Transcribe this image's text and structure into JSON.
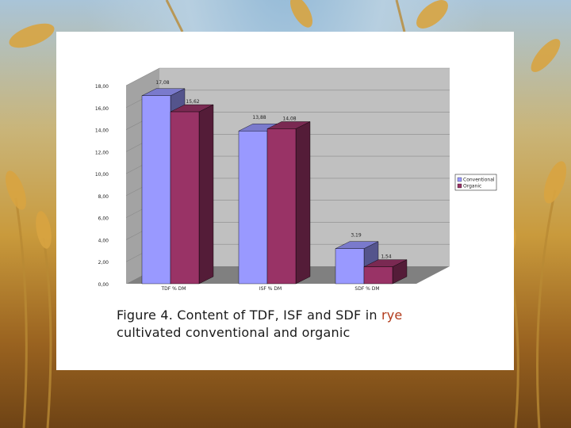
{
  "chart_data": {
    "type": "bar",
    "title": "",
    "xlabel": "",
    "ylabel": "",
    "ylim": [
      0,
      18
    ],
    "yticks": [
      "0,00",
      "2,00",
      "4,00",
      "6,00",
      "8,00",
      "10,00",
      "12,00",
      "14,00",
      "16,00",
      "18,00"
    ],
    "categories": [
      "TDF % DM",
      "ISF % DM",
      "SDF % DM"
    ],
    "series": [
      {
        "name": "Conventional",
        "values": [
          17.08,
          13.88,
          3.19
        ],
        "labels": [
          "17,08",
          "13,88",
          "3,19"
        ],
        "color": "#9999ff"
      },
      {
        "name": "Organic",
        "values": [
          15.62,
          14.08,
          1.54
        ],
        "labels": [
          "15,62",
          "14,08",
          "1,54"
        ],
        "color": "#993366"
      }
    ],
    "grid": true,
    "legend": "right",
    "style": "3d"
  },
  "caption": {
    "text_before": "Figure 4. Content of TDF, ISF and SDF in ",
    "highlight": "rye",
    "text_after": " cultivated conventional and organic"
  },
  "colors": {
    "slide_background": "#ffffff",
    "caption_highlight": "#b23a1a",
    "plot_wall": "#c0c0c0",
    "plot_floor": "#808080"
  }
}
